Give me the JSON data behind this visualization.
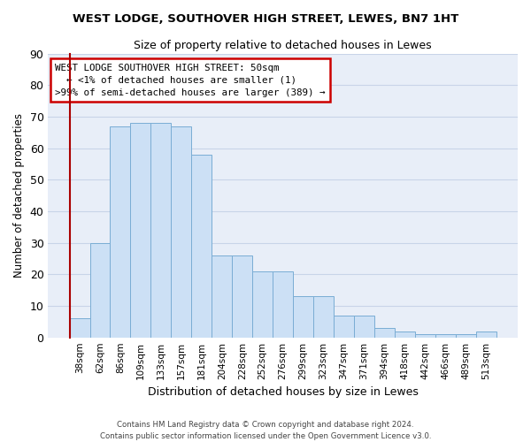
{
  "title": "WEST LODGE, SOUTHOVER HIGH STREET, LEWES, BN7 1HT",
  "subtitle": "Size of property relative to detached houses in Lewes",
  "xlabel": "Distribution of detached houses by size in Lewes",
  "ylabel": "Number of detached properties",
  "categories": [
    "38sqm",
    "62sqm",
    "86sqm",
    "109sqm",
    "133sqm",
    "157sqm",
    "181sqm",
    "204sqm",
    "228sqm",
    "252sqm",
    "276sqm",
    "299sqm",
    "323sqm",
    "347sqm",
    "371sqm",
    "394sqm",
    "418sqm",
    "442sqm",
    "466sqm",
    "489sqm",
    "513sqm"
  ],
  "values": [
    6,
    30,
    67,
    68,
    68,
    67,
    58,
    26,
    26,
    21,
    21,
    13,
    13,
    7,
    7,
    3,
    2,
    1,
    1,
    1,
    2
  ],
  "bar_color": "#cce0f5",
  "bar_edge_color": "#7aadd4",
  "grid_color": "#c8d4e8",
  "background_color": "#e8eef8",
  "ylim": [
    0,
    90
  ],
  "yticks": [
    0,
    10,
    20,
    30,
    40,
    50,
    60,
    70,
    80,
    90
  ],
  "property_label": "WEST LODGE SOUTHOVER HIGH STREET: 50sqm",
  "annotation_line1": "  ← <1% of detached houses are smaller (1)",
  "annotation_line2": ">99% of semi-detached houses are larger (389) →",
  "annotation_box_color": "#ffffff",
  "annotation_box_edge": "#cc0000",
  "marker_line_color": "#aa0000",
  "footer1": "Contains HM Land Registry data © Crown copyright and database right 2024.",
  "footer2": "Contains public sector information licensed under the Open Government Licence v3.0."
}
